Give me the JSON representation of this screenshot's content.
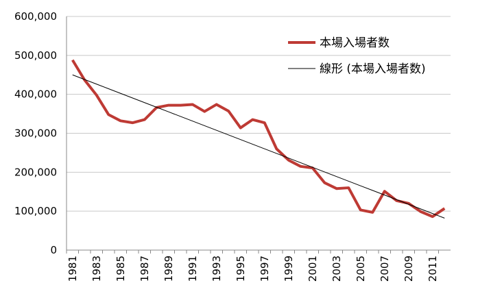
{
  "chart_data": {
    "type": "line",
    "categories": [
      "1981",
      null,
      "1983",
      null,
      "1985",
      null,
      "1987",
      null,
      "1989",
      null,
      "1991",
      null,
      "1993",
      null,
      "1995",
      null,
      "1997",
      null,
      "1999",
      null,
      "2001",
      null,
      "2003",
      null,
      "2005",
      null,
      "2007",
      null,
      "2009",
      null,
      "2011",
      null
    ],
    "series": [
      {
        "name": "本場入場者数",
        "color": "#be3a34",
        "width": 4,
        "values": [
          488000,
          437000,
          398000,
          348000,
          332000,
          327000,
          335000,
          366000,
          372000,
          372000,
          374000,
          356000,
          374000,
          357000,
          314000,
          335000,
          327000,
          260000,
          231000,
          215000,
          211000,
          173000,
          158000,
          160000,
          103000,
          97000,
          151000,
          127000,
          120000,
          99000,
          86000,
          107000
        ]
      },
      {
        "name": "線形 (本場入場者数)",
        "color": "#000000",
        "width": 1,
        "values": [
          450000,
          438130,
          426260,
          414390,
          402520,
          390650,
          378780,
          366910,
          355040,
          343170,
          331300,
          319430,
          307560,
          295690,
          283820,
          271950,
          260080,
          248210,
          236340,
          224470,
          212600,
          200730,
          188860,
          176990,
          165120,
          153250,
          141380,
          129510,
          117640,
          105770,
          93900,
          82030
        ]
      }
    ],
    "ylim": [
      0,
      600000
    ],
    "yticks": [
      0,
      {
        "value": 100000,
        "label": "100,000"
      },
      {
        "value": 200000,
        "label": "200,000"
      },
      {
        "value": 300000,
        "label": "300,000"
      },
      {
        "value": 400000,
        "label": "400,000"
      },
      {
        "value": 500000,
        "label": "500,000"
      },
      {
        "value": 600000,
        "label": "600,000"
      }
    ],
    "grid": true,
    "legend": "top-right"
  }
}
